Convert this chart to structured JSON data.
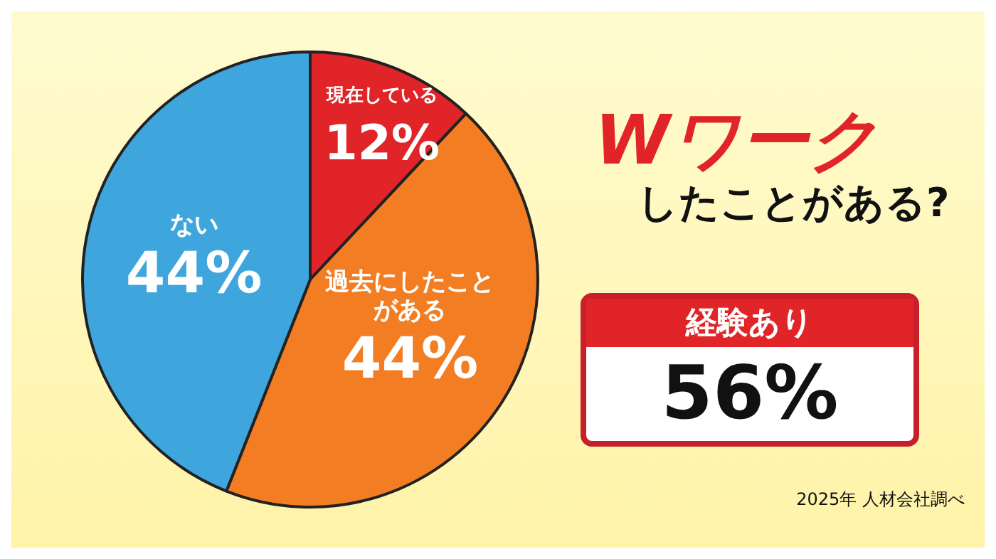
{
  "chart_data": {
    "type": "pie",
    "title": "Wワーク",
    "subtitle": "したことがある?",
    "categories": [
      "現在している",
      "過去にしたことがある",
      "ない"
    ],
    "values": [
      12,
      44,
      44
    ],
    "colors": [
      "#e02428",
      "#f27d22",
      "#3fa6dd"
    ],
    "value_labels": [
      "12%",
      "44%",
      "44%"
    ],
    "legend": false,
    "annotations": [
      "経験あり",
      "56%",
      "2025年 人材会社調べ"
    ]
  }
}
